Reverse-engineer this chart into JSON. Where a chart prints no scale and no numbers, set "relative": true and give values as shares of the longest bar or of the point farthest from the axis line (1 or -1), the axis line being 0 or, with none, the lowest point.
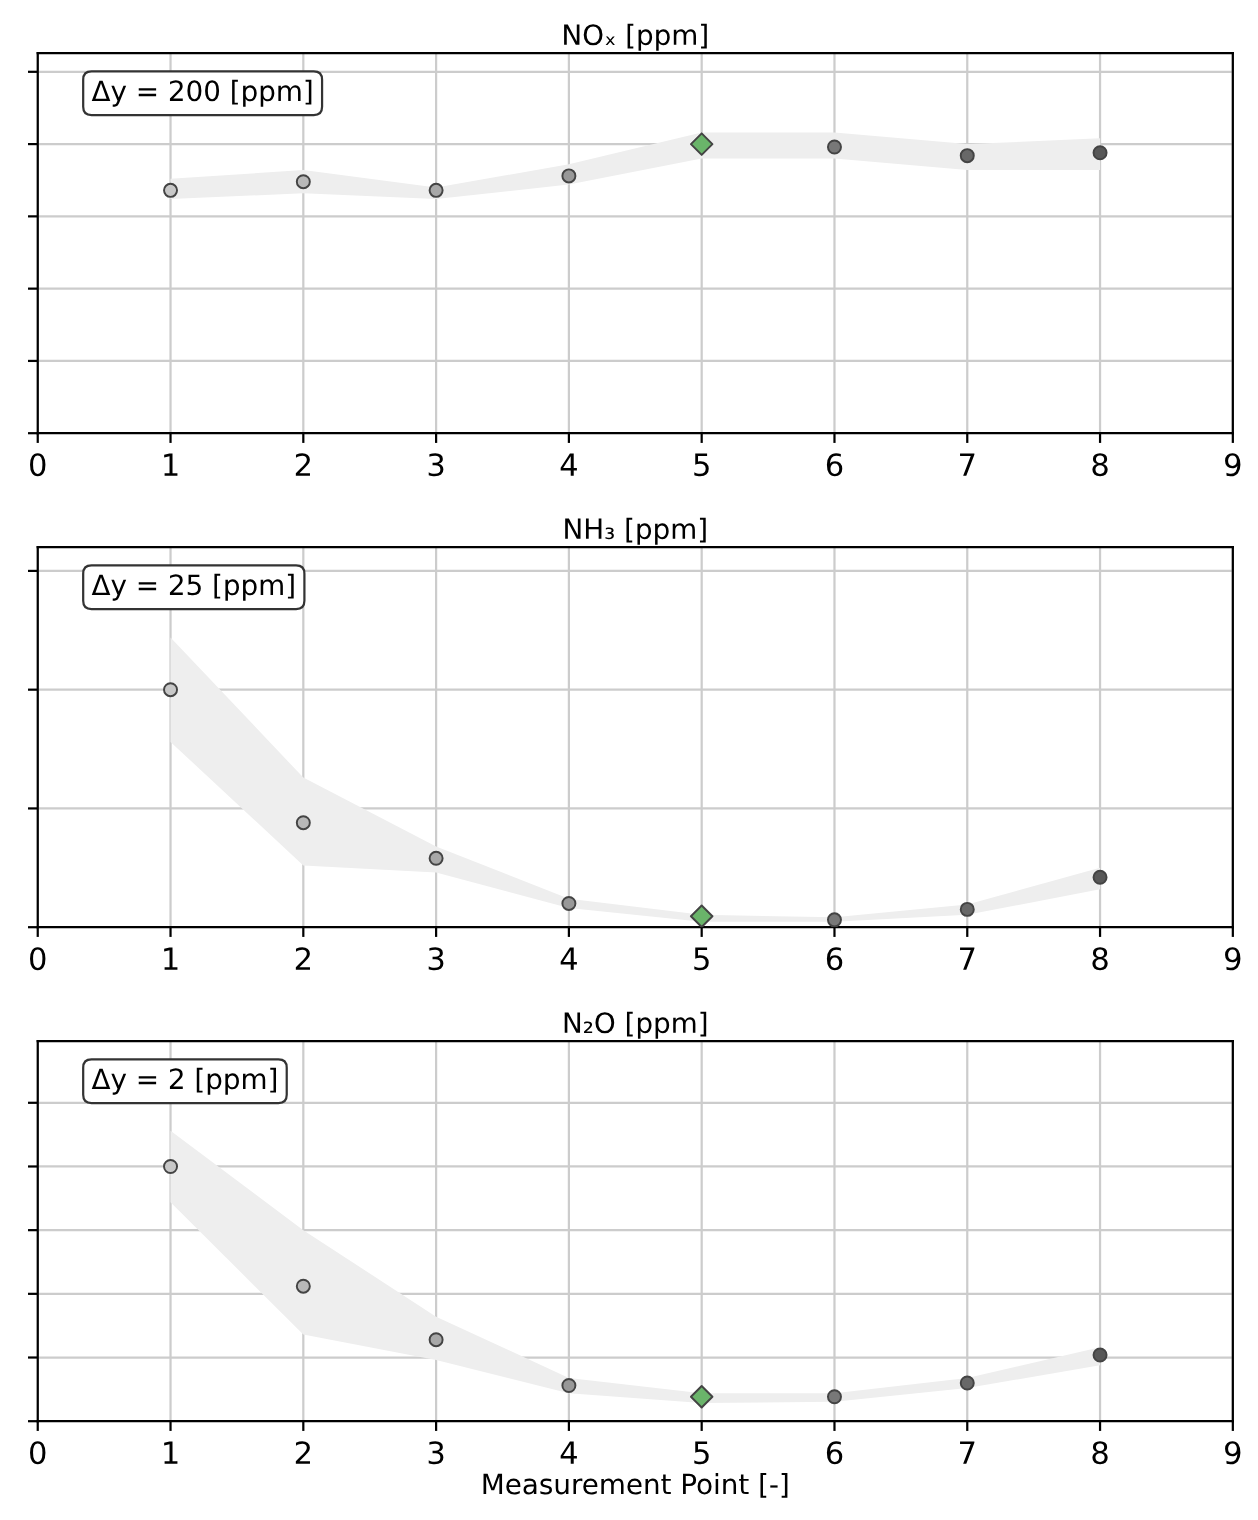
{
  "chart_data": [
    {
      "type": "scatter",
      "title": "NOₓ [ppm]",
      "relative": true,
      "annotations": [
        "Δy = 200 [ppm]"
      ],
      "x": [
        1,
        2,
        3,
        4,
        5,
        6,
        7,
        8
      ],
      "xlim": [
        0,
        9
      ],
      "xticks": [
        0,
        1,
        2,
        3,
        4,
        5,
        6,
        7,
        8,
        9
      ],
      "grid": true,
      "tick_labels": "x",
      "series": [
        {
          "type": "scatter",
          "marker": "circle",
          "colors": [
            "#c8c8c8",
            "#b8b8b8",
            "#a8a8a8",
            "#989898",
            "#888888",
            "#787878",
            "#686868",
            "#585858"
          ],
          "values": [
            0.84,
            0.87,
            0.84,
            0.89,
            null,
            0.99,
            0.96,
            0.97
          ],
          "lower": [
            0.81,
            0.83,
            0.81,
            0.86,
            0.95,
            0.95,
            0.91,
            0.91
          ],
          "upper": [
            0.88,
            0.91,
            0.85,
            0.93,
            1.04,
            1.04,
            1.0,
            1.02
          ]
        },
        {
          "type": "scatter",
          "marker": "diamond",
          "color": "#6ab46a",
          "values": [
            null,
            null,
            null,
            null,
            1.0,
            null,
            null,
            null
          ]
        }
      ]
    },
    {
      "type": "scatter",
      "title": "NH₃ [ppm]",
      "relative": true,
      "annotations": [
        "Δy = 25 [ppm]"
      ],
      "x": [
        1,
        2,
        3,
        4,
        5,
        6,
        7,
        8
      ],
      "xlim": [
        0,
        9
      ],
      "xticks": [
        0,
        1,
        2,
        3,
        4,
        5,
        6,
        7,
        8,
        9
      ],
      "grid": true,
      "tick_labels": "x",
      "series": [
        {
          "type": "scatter",
          "marker": "circle",
          "colors": [
            "#c8c8c8",
            "#b8b8b8",
            "#a8a8a8",
            "#989898",
            "#888888",
            "#787878",
            "#686868",
            "#585858"
          ],
          "values": [
            1.0,
            0.44,
            0.29,
            0.1,
            null,
            0.031,
            0.075,
            0.21
          ],
          "lower": [
            0.78,
            0.26,
            0.23,
            0.081,
            0.023,
            0.023,
            0.052,
            0.16
          ],
          "upper": [
            1.22,
            0.63,
            0.34,
            0.12,
            0.052,
            0.042,
            0.096,
            0.25
          ]
        },
        {
          "type": "scatter",
          "marker": "diamond",
          "color": "#6ab46a",
          "values": [
            null,
            null,
            null,
            null,
            0.046,
            null,
            null,
            null
          ]
        }
      ]
    },
    {
      "type": "scatter",
      "title": "N₂O [ppm]",
      "xlabel": "Measurement Point [-]",
      "relative": true,
      "annotations": [
        "Δy = 2 [ppm]"
      ],
      "x": [
        1,
        2,
        3,
        4,
        5,
        6,
        7,
        8
      ],
      "xlim": [
        0,
        9
      ],
      "xticks": [
        0,
        1,
        2,
        3,
        4,
        5,
        6,
        7,
        8,
        9
      ],
      "grid": true,
      "tick_labels": "x",
      "series": [
        {
          "type": "scatter",
          "marker": "circle",
          "colors": [
            "#c8c8c8",
            "#b8b8b8",
            "#a8a8a8",
            "#989898",
            "#888888",
            "#787878",
            "#686868",
            "#585858"
          ],
          "values": [
            1.0,
            0.53,
            0.32,
            0.14,
            null,
            0.096,
            0.15,
            0.26
          ],
          "lower": [
            0.86,
            0.34,
            0.24,
            0.11,
            0.071,
            0.076,
            0.13,
            0.22
          ],
          "upper": [
            1.14,
            0.75,
            0.41,
            0.17,
            0.11,
            0.11,
            0.17,
            0.29
          ]
        },
        {
          "type": "scatter",
          "marker": "diamond",
          "color": "#6ab46a",
          "values": [
            null,
            null,
            null,
            null,
            0.096,
            null,
            null,
            null
          ]
        }
      ]
    }
  ]
}
